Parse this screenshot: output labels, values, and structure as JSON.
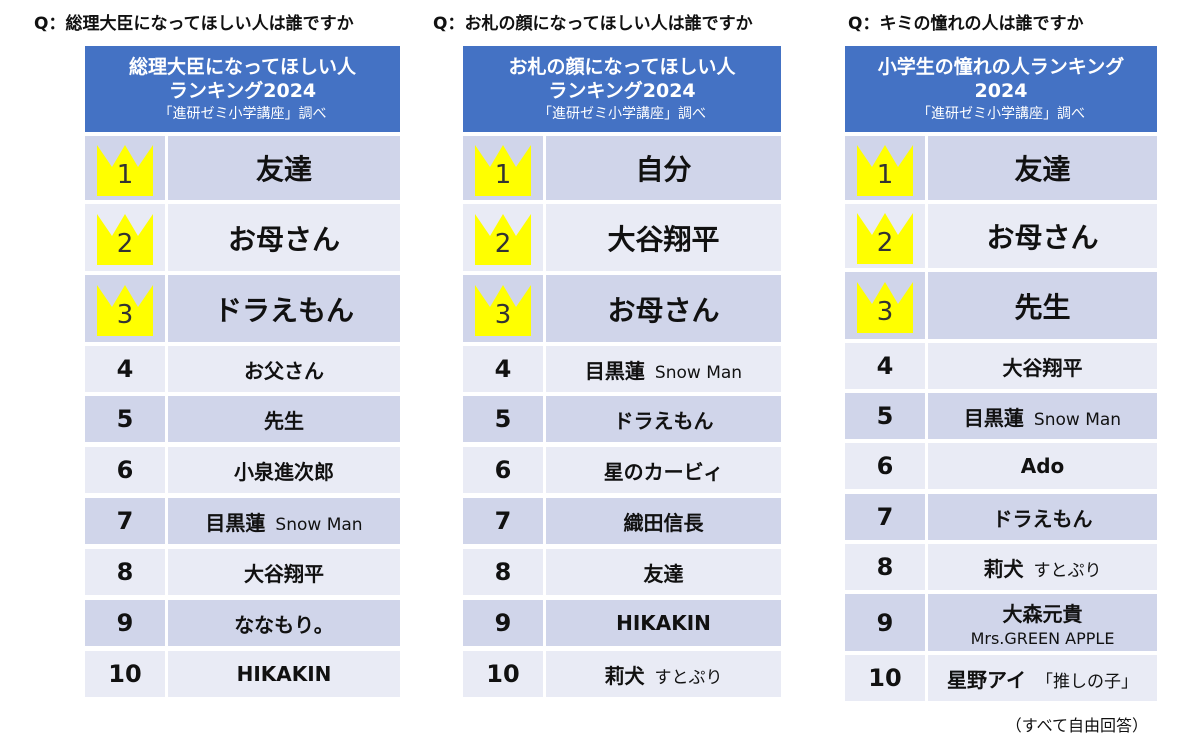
{
  "panels": [
    {
      "question": "Q：総理大臣になってほしい人は誰ですか",
      "header_lines": [
        "総理大臣になってほしい人",
        "ランキング2024"
      ],
      "header_sub": "「進研ゼミ小学講座」調べ",
      "rows": [
        {
          "rank": "1",
          "name": "友達",
          "extra": "",
          "sub": ""
        },
        {
          "rank": "2",
          "name": "お母さん",
          "extra": "",
          "sub": ""
        },
        {
          "rank": "3",
          "name": "ドラえもん",
          "extra": "",
          "sub": ""
        },
        {
          "rank": "4",
          "name": "お父さん",
          "extra": "",
          "sub": ""
        },
        {
          "rank": "5",
          "name": "先生",
          "extra": "",
          "sub": ""
        },
        {
          "rank": "6",
          "name": "小泉進次郎",
          "extra": "",
          "sub": ""
        },
        {
          "rank": "7",
          "name": "目黒蓮",
          "extra": "Snow Man",
          "sub": ""
        },
        {
          "rank": "8",
          "name": "大谷翔平",
          "extra": "",
          "sub": ""
        },
        {
          "rank": "9",
          "name": "ななもり。",
          "extra": "",
          "sub": ""
        },
        {
          "rank": "10",
          "name": "HIKAKIN",
          "extra": "",
          "sub": ""
        }
      ]
    },
    {
      "question": "Q：お札の顔になってほしい人は誰ですか",
      "header_lines": [
        "お札の顔になってほしい人",
        "ランキング2024"
      ],
      "header_sub": "「進研ゼミ小学講座」調べ",
      "rows": [
        {
          "rank": "1",
          "name": "自分",
          "extra": "",
          "sub": ""
        },
        {
          "rank": "2",
          "name": "大谷翔平",
          "extra": "",
          "sub": ""
        },
        {
          "rank": "3",
          "name": "お母さん",
          "extra": "",
          "sub": ""
        },
        {
          "rank": "4",
          "name": "目黒蓮",
          "extra": "Snow Man",
          "sub": ""
        },
        {
          "rank": "5",
          "name": "ドラえもん",
          "extra": "",
          "sub": ""
        },
        {
          "rank": "6",
          "name": "星のカービィ",
          "extra": "",
          "sub": ""
        },
        {
          "rank": "7",
          "name": "織田信長",
          "extra": "",
          "sub": ""
        },
        {
          "rank": "8",
          "name": "友達",
          "extra": "",
          "sub": ""
        },
        {
          "rank": "9",
          "name": "HIKAKIN",
          "extra": "",
          "sub": ""
        },
        {
          "rank": "10",
          "name": "莉犬",
          "extra": "すとぷり",
          "sub": ""
        }
      ]
    },
    {
      "question": "Q：キミの憧れの人は誰ですか",
      "header_lines": [
        "小学生の憧れの人ランキング",
        "2024"
      ],
      "header_sub": "「進研ゼミ小学講座」調べ",
      "rows": [
        {
          "rank": "1",
          "name": "友達",
          "extra": "",
          "sub": ""
        },
        {
          "rank": "2",
          "name": "お母さん",
          "extra": "",
          "sub": ""
        },
        {
          "rank": "3",
          "name": "先生",
          "extra": "",
          "sub": ""
        },
        {
          "rank": "4",
          "name": "大谷翔平",
          "extra": "",
          "sub": ""
        },
        {
          "rank": "5",
          "name": "目黒蓮",
          "extra": "Snow Man",
          "sub": ""
        },
        {
          "rank": "6",
          "name": "Ado",
          "extra": "",
          "sub": ""
        },
        {
          "rank": "7",
          "name": "ドラえもん",
          "extra": "",
          "sub": ""
        },
        {
          "rank": "8",
          "name": "莉犬",
          "extra": "すとぷり",
          "sub": ""
        },
        {
          "rank": "9",
          "name": "大森元貴",
          "extra": "",
          "sub": "Mrs.GREEN APPLE"
        },
        {
          "rank": "10",
          "name": "星野アイ",
          "extra": "「推しの子」",
          "sub": ""
        }
      ]
    }
  ],
  "footnote": "（すべて自由回答）",
  "colors": {
    "header": "#4472c4",
    "row_odd": "#d0d5ea",
    "row_even": "#e9ebf5",
    "crown": "#ffff00"
  },
  "icons": {
    "top3_rank": "crown-icon"
  }
}
